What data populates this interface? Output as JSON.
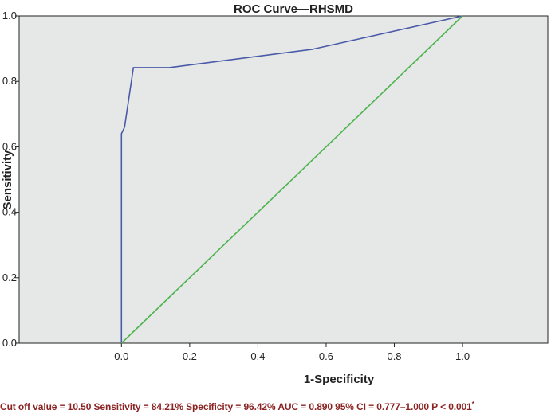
{
  "chart_data": {
    "type": "line",
    "title": "ROC Curve—RHSMD",
    "xlabel": "1-Specificity",
    "ylabel": "Sensitivity",
    "xlim": [
      -0.3,
      1.25
    ],
    "ylim": [
      0,
      1
    ],
    "x_ticks": [
      "0.0",
      "0.2",
      "0.4",
      "0.6",
      "0.8",
      "1.0"
    ],
    "y_ticks": [
      "0.0",
      "0.2",
      "0.4",
      "0.6",
      "0.8",
      "1.0"
    ],
    "grid": false,
    "background": "#e6e8e8",
    "series": [
      {
        "color": "#4a5aa8",
        "points": [
          [
            0.0,
            0.0
          ],
          [
            0.0,
            0.64
          ],
          [
            0.009,
            0.66
          ],
          [
            0.035,
            0.842
          ],
          [
            0.14,
            0.842
          ],
          [
            0.56,
            0.898
          ],
          [
            1.0,
            1.0
          ]
        ]
      },
      {
        "color": "#4cb34c",
        "points": [
          [
            0.0,
            0.0
          ],
          [
            1.0,
            1.0
          ]
        ]
      }
    ]
  },
  "footnote": {
    "text": "Cut off value = 10.50  Sensitivity = 84.21%  Specificity = 96.42%  AUC = 0.890  95% CI = 0.777–1.000  P < 0.001",
    "superscript": "*"
  }
}
